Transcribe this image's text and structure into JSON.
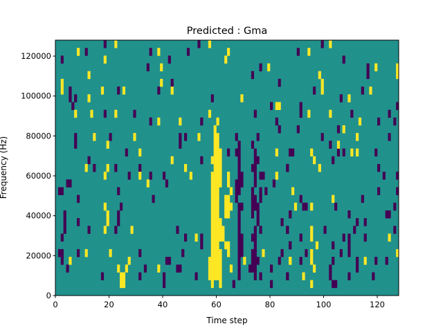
{
  "chart_data": {
    "type": "heatmap",
    "title": "Predicted : Gma",
    "xlabel": "Time step",
    "ylabel": "Frequency (Hz)",
    "xlim": [
      0,
      128
    ],
    "ylim": [
      0,
      128000
    ],
    "x_ticks": [
      0,
      20,
      40,
      60,
      80,
      100,
      120
    ],
    "y_ticks": [
      0,
      20000,
      40000,
      60000,
      80000,
      100000,
      120000
    ],
    "n_time_steps": 128,
    "n_freq_bins": 33,
    "freq_bin_order": "row index counted from highest frequency (0) to lowest (32)",
    "colormap": {
      "0": "#440154",
      "1": "#21918c",
      "2": "#fde725"
    },
    "background_value": 1,
    "cell_runs_note": "each run is [t_start, t_end, row] inclusive",
    "value_0_runs": [
      [
        18,
        18,
        0
      ],
      [
        11,
        11,
        1
      ],
      [
        35,
        35,
        1
      ],
      [
        2,
        2,
        2
      ],
      [
        42,
        42,
        2
      ],
      [
        34,
        34,
        3
      ],
      [
        43,
        43,
        5
      ],
      [
        5,
        5,
        6
      ],
      [
        23,
        23,
        6
      ],
      [
        38,
        38,
        6
      ],
      [
        5,
        5,
        7
      ],
      [
        7,
        7,
        7
      ],
      [
        6,
        6,
        8
      ],
      [
        18,
        18,
        9
      ],
      [
        29,
        29,
        9
      ],
      [
        35,
        35,
        10
      ],
      [
        7,
        7,
        12
      ],
      [
        20,
        20,
        12
      ],
      [
        7,
        7,
        13
      ],
      [
        26,
        26,
        14
      ],
      [
        12,
        12,
        15
      ],
      [
        14,
        14,
        16
      ],
      [
        22,
        22,
        16
      ],
      [
        31,
        31,
        16
      ],
      [
        27,
        27,
        17
      ],
      [
        35,
        35,
        17
      ],
      [
        40,
        40,
        17
      ],
      [
        4,
        5,
        18
      ],
      [
        41,
        41,
        18
      ],
      [
        1,
        2,
        19
      ],
      [
        23,
        23,
        19
      ],
      [
        8,
        8,
        20
      ],
      [
        36,
        36,
        20
      ],
      [
        24,
        24,
        21
      ],
      [
        3,
        3,
        22
      ],
      [
        23,
        23,
        22
      ],
      [
        3,
        3,
        23
      ],
      [
        8,
        8,
        23
      ],
      [
        23,
        23,
        23
      ],
      [
        3,
        3,
        24
      ],
      [
        12,
        12,
        24
      ],
      [
        22,
        22,
        24
      ],
      [
        2,
        2,
        25
      ],
      [
        1,
        2,
        27
      ],
      [
        8,
        8,
        27
      ],
      [
        31,
        31,
        27
      ],
      [
        2,
        2,
        28
      ],
      [
        41,
        42,
        28
      ],
      [
        4,
        4,
        29
      ],
      [
        33,
        33,
        29
      ],
      [
        17,
        17,
        30
      ],
      [
        31,
        31,
        30
      ],
      [
        40,
        40,
        30
      ],
      [
        40,
        40,
        31
      ],
      [
        53,
        53,
        0
      ],
      [
        49,
        49,
        1
      ],
      [
        76,
        76,
        3
      ],
      [
        73,
        73,
        4
      ],
      [
        83,
        83,
        5
      ],
      [
        58,
        58,
        7
      ],
      [
        80,
        80,
        8
      ],
      [
        74,
        74,
        9
      ],
      [
        54,
        54,
        10
      ],
      [
        82,
        82,
        10
      ],
      [
        83,
        83,
        11
      ],
      [
        46,
        46,
        12
      ],
      [
        48,
        48,
        12
      ],
      [
        67,
        67,
        12
      ],
      [
        75,
        75,
        12
      ],
      [
        46,
        46,
        13
      ],
      [
        68,
        68,
        13
      ],
      [
        73,
        73,
        13
      ],
      [
        64,
        64,
        14
      ],
      [
        67,
        68,
        14
      ],
      [
        74,
        74,
        14
      ],
      [
        87,
        87,
        14
      ],
      [
        54,
        54,
        15
      ],
      [
        68,
        68,
        15
      ],
      [
        74,
        75,
        15
      ],
      [
        68,
        68,
        16
      ],
      [
        73,
        74,
        16
      ],
      [
        86,
        86,
        16
      ],
      [
        68,
        69,
        17
      ],
      [
        74,
        74,
        17
      ],
      [
        76,
        77,
        17
      ],
      [
        67,
        69,
        18
      ],
      [
        74,
        74,
        18
      ],
      [
        81,
        81,
        18
      ],
      [
        67,
        68,
        19
      ],
      [
        73,
        73,
        19
      ],
      [
        76,
        76,
        19
      ],
      [
        78,
        78,
        19
      ],
      [
        67,
        67,
        20
      ],
      [
        73,
        74,
        20
      ],
      [
        76,
        76,
        20
      ],
      [
        68,
        69,
        21
      ],
      [
        73,
        75,
        21
      ],
      [
        68,
        68,
        22
      ],
      [
        73,
        73,
        22
      ],
      [
        75,
        75,
        22
      ],
      [
        87,
        87,
        22
      ],
      [
        68,
        68,
        23
      ],
      [
        75,
        75,
        23
      ],
      [
        84,
        84,
        23
      ],
      [
        45,
        45,
        24
      ],
      [
        68,
        68,
        24
      ],
      [
        74,
        74,
        24
      ],
      [
        76,
        76,
        24
      ],
      [
        86,
        86,
        24
      ],
      [
        48,
        48,
        25
      ],
      [
        54,
        54,
        25
      ],
      [
        68,
        69,
        25
      ],
      [
        73,
        74,
        25
      ],
      [
        54,
        54,
        26
      ],
      [
        68,
        69,
        26
      ],
      [
        74,
        74,
        26
      ],
      [
        87,
        87,
        26
      ],
      [
        47,
        47,
        27
      ],
      [
        68,
        69,
        27
      ],
      [
        73,
        74,
        27
      ],
      [
        84,
        84,
        27
      ],
      [
        68,
        68,
        28
      ],
      [
        73,
        75,
        28
      ],
      [
        83,
        83,
        28
      ],
      [
        45,
        46,
        29
      ],
      [
        68,
        68,
        29
      ],
      [
        72,
        74,
        29
      ],
      [
        80,
        80,
        29
      ],
      [
        52,
        52,
        30
      ],
      [
        68,
        68,
        30
      ],
      [
        74,
        74,
        30
      ],
      [
        76,
        76,
        30
      ],
      [
        86,
        86,
        30
      ],
      [
        66,
        66,
        31
      ],
      [
        80,
        80,
        31
      ],
      [
        99,
        99,
        0
      ],
      [
        90,
        90,
        1
      ],
      [
        107,
        107,
        2
      ],
      [
        116,
        116,
        3
      ],
      [
        116,
        116,
        4
      ],
      [
        96,
        96,
        6
      ],
      [
        114,
        114,
        6
      ],
      [
        106,
        106,
        7
      ],
      [
        91,
        91,
        8
      ],
      [
        127,
        127,
        8
      ],
      [
        91,
        91,
        9
      ],
      [
        110,
        110,
        9
      ],
      [
        124,
        124,
        9
      ],
      [
        120,
        120,
        10
      ],
      [
        126,
        126,
        10
      ],
      [
        90,
        90,
        11
      ],
      [
        105,
        105,
        11
      ],
      [
        99,
        99,
        12
      ],
      [
        124,
        124,
        12
      ],
      [
        102,
        102,
        13
      ],
      [
        87,
        88,
        14
      ],
      [
        105,
        105,
        14
      ],
      [
        107,
        107,
        14
      ],
      [
        119,
        119,
        14
      ],
      [
        103,
        103,
        15
      ],
      [
        86,
        86,
        16
      ],
      [
        120,
        120,
        16
      ],
      [
        122,
        122,
        17
      ],
      [
        127,
        127,
        17
      ],
      [
        120,
        120,
        19
      ],
      [
        127,
        127,
        19
      ],
      [
        91,
        91,
        20
      ],
      [
        114,
        114,
        20
      ],
      [
        92,
        93,
        21
      ],
      [
        104,
        104,
        21
      ],
      [
        126,
        126,
        21
      ],
      [
        87,
        87,
        22
      ],
      [
        109,
        109,
        22
      ],
      [
        123,
        124,
        22
      ],
      [
        112,
        112,
        23
      ],
      [
        115,
        115,
        23
      ],
      [
        86,
        86,
        24
      ],
      [
        100,
        100,
        24
      ],
      [
        111,
        111,
        24
      ],
      [
        126,
        126,
        24
      ],
      [
        91,
        91,
        25
      ],
      [
        107,
        107,
        25
      ],
      [
        109,
        109,
        25
      ],
      [
        115,
        115,
        25
      ],
      [
        87,
        87,
        26
      ],
      [
        103,
        103,
        26
      ],
      [
        109,
        109,
        26
      ],
      [
        93,
        93,
        27
      ],
      [
        106,
        106,
        27
      ],
      [
        109,
        109,
        27
      ],
      [
        91,
        91,
        28
      ],
      [
        103,
        103,
        28
      ],
      [
        112,
        112,
        28
      ],
      [
        119,
        119,
        28
      ],
      [
        123,
        123,
        28
      ],
      [
        102,
        102,
        29
      ],
      [
        112,
        112,
        29
      ],
      [
        102,
        102,
        30
      ],
      [
        86,
        86,
        30
      ],
      [
        109,
        109,
        30
      ],
      [
        118,
        118,
        30
      ],
      [
        103,
        104,
        31
      ]
    ],
    "value_2_runs": [
      [
        22,
        22,
        0
      ],
      [
        8,
        8,
        1
      ],
      [
        38,
        38,
        1
      ],
      [
        18,
        18,
        2
      ],
      [
        39,
        39,
        3
      ],
      [
        12,
        12,
        4
      ],
      [
        2,
        2,
        5
      ],
      [
        39,
        39,
        5
      ],
      [
        2,
        2,
        6
      ],
      [
        17,
        17,
        6
      ],
      [
        25,
        25,
        6
      ],
      [
        43,
        43,
        6
      ],
      [
        12,
        12,
        7
      ],
      [
        7,
        7,
        9
      ],
      [
        13,
        13,
        9
      ],
      [
        22,
        22,
        9
      ],
      [
        38,
        38,
        10
      ],
      [
        14,
        14,
        12
      ],
      [
        29,
        29,
        12
      ],
      [
        19,
        19,
        13
      ],
      [
        31,
        31,
        14
      ],
      [
        43,
        43,
        15
      ],
      [
        11,
        11,
        16
      ],
      [
        19,
        19,
        16
      ],
      [
        18,
        18,
        17
      ],
      [
        31,
        31,
        17
      ],
      [
        34,
        34,
        18
      ],
      [
        18,
        18,
        21
      ],
      [
        19,
        19,
        22
      ],
      [
        19,
        19,
        23
      ],
      [
        18,
        18,
        24
      ],
      [
        28,
        28,
        24
      ],
      [
        11,
        11,
        27
      ],
      [
        20,
        20,
        27
      ],
      [
        5,
        5,
        28
      ],
      [
        27,
        27,
        28
      ],
      [
        23,
        23,
        29
      ],
      [
        26,
        26,
        29
      ],
      [
        38,
        38,
        29
      ],
      [
        24,
        25,
        30
      ],
      [
        24,
        25,
        31
      ],
      [
        57,
        57,
        0
      ],
      [
        64,
        64,
        1
      ],
      [
        63,
        63,
        2
      ],
      [
        79,
        79,
        3
      ],
      [
        69,
        69,
        7
      ],
      [
        82,
        83,
        8
      ],
      [
        57,
        57,
        9
      ],
      [
        46,
        46,
        10
      ],
      [
        60,
        60,
        10
      ],
      [
        59,
        59,
        11
      ],
      [
        53,
        53,
        12
      ],
      [
        59,
        60,
        12
      ],
      [
        59,
        60,
        13
      ],
      [
        59,
        61,
        14
      ],
      [
        82,
        82,
        14
      ],
      [
        58,
        61,
        15
      ],
      [
        48,
        48,
        16
      ],
      [
        59,
        61,
        16
      ],
      [
        50,
        50,
        17
      ],
      [
        58,
        61,
        17
      ],
      [
        64,
        64,
        17
      ],
      [
        82,
        82,
        17
      ],
      [
        58,
        61,
        18
      ],
      [
        64,
        64,
        18
      ],
      [
        58,
        60,
        19
      ],
      [
        65,
        65,
        19
      ],
      [
        58,
        60,
        20
      ],
      [
        63,
        64,
        20
      ],
      [
        58,
        60,
        21
      ],
      [
        63,
        65,
        21
      ],
      [
        58,
        60,
        22
      ],
      [
        63,
        64,
        22
      ],
      [
        58,
        61,
        23
      ],
      [
        58,
        62,
        24
      ],
      [
        52,
        52,
        25
      ],
      [
        58,
        62,
        25
      ],
      [
        58,
        60,
        26
      ],
      [
        63,
        64,
        26
      ],
      [
        58,
        61,
        27
      ],
      [
        64,
        64,
        27
      ],
      [
        77,
        77,
        27
      ],
      [
        57,
        61,
        28
      ],
      [
        70,
        70,
        28
      ],
      [
        87,
        87,
        28
      ],
      [
        57,
        61,
        29
      ],
      [
        65,
        65,
        29
      ],
      [
        57,
        61,
        30
      ],
      [
        58,
        58,
        31
      ],
      [
        61,
        61,
        31
      ],
      [
        102,
        102,
        0
      ],
      [
        94,
        94,
        1
      ],
      [
        119,
        119,
        3
      ],
      [
        127,
        127,
        3
      ],
      [
        127,
        127,
        4
      ],
      [
        98,
        98,
        4
      ],
      [
        99,
        99,
        5
      ],
      [
        99,
        99,
        6
      ],
      [
        117,
        117,
        6
      ],
      [
        109,
        109,
        7
      ],
      [
        94,
        94,
        9
      ],
      [
        102,
        102,
        9
      ],
      [
        113,
        113,
        10
      ],
      [
        107,
        107,
        11
      ],
      [
        112,
        112,
        12
      ],
      [
        105,
        105,
        13
      ],
      [
        95,
        95,
        14
      ],
      [
        110,
        110,
        14
      ],
      [
        112,
        112,
        14
      ],
      [
        96,
        96,
        15
      ],
      [
        98,
        98,
        16
      ],
      [
        88,
        88,
        19
      ],
      [
        103,
        103,
        20
      ],
      [
        89,
        89,
        21
      ],
      [
        95,
        95,
        21
      ],
      [
        95,
        95,
        24
      ],
      [
        95,
        95,
        25
      ],
      [
        124,
        124,
        25
      ],
      [
        97,
        97,
        26
      ],
      [
        95,
        95,
        27
      ],
      [
        127,
        127,
        27
      ],
      [
        87,
        87,
        28
      ],
      [
        95,
        95,
        28
      ],
      [
        115,
        115,
        28
      ],
      [
        96,
        96,
        29
      ],
      [
        92,
        92,
        30
      ],
      [
        95,
        95,
        31
      ]
    ],
    "grid": false,
    "legend": "none"
  }
}
